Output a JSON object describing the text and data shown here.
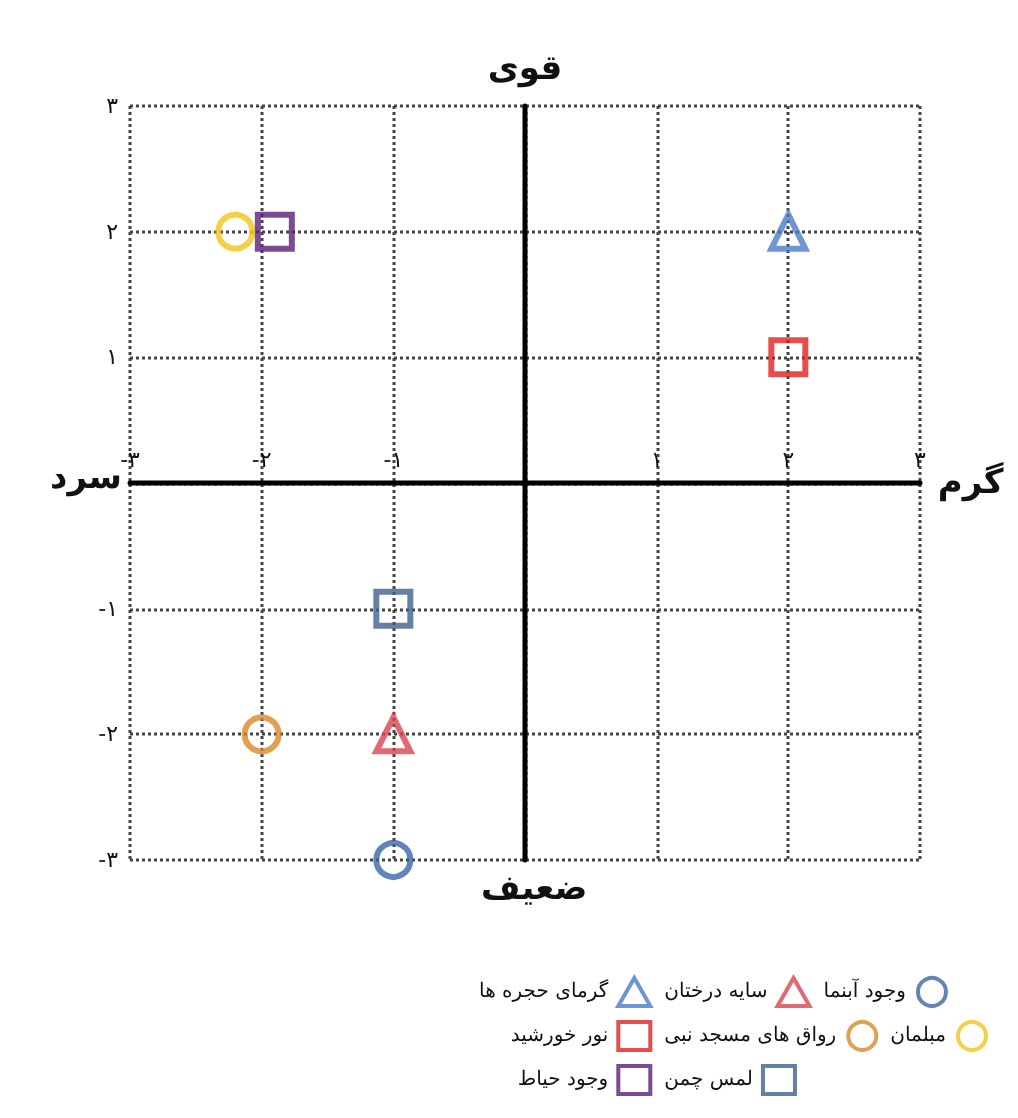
{
  "chart_data": {
    "type": "scatter",
    "xlabel": "گرم",
    "ylabel": "قوی",
    "annotations": [
      "سرد",
      "ضعیف"
    ],
    "xlim": [
      -3,
      3
    ],
    "ylim": [
      -3,
      3
    ],
    "xticks": [
      {
        "value": -3,
        "label": "-۳"
      },
      {
        "value": -2,
        "label": "-۲"
      },
      {
        "value": -1,
        "label": "-۱"
      },
      {
        "value": 0,
        "label": null
      },
      {
        "value": 1,
        "label": "۱"
      },
      {
        "value": 2,
        "label": "۲"
      },
      {
        "value": 3,
        "label": "۳"
      }
    ],
    "yticks": [
      {
        "value": -3,
        "label": "-۳"
      },
      {
        "value": -2,
        "label": "-۲"
      },
      {
        "value": -1,
        "label": "-۱"
      },
      {
        "value": 0,
        "label": null
      },
      {
        "value": 1,
        "label": "۱"
      },
      {
        "value": 2,
        "label": "۲"
      },
      {
        "value": 3,
        "label": "۳"
      }
    ],
    "grid": true,
    "legend": "bottom right",
    "series": [
      {
        "name": "سایه درختان",
        "color": "#d9434e",
        "marker": "triangle",
        "x": [
          -1
        ],
        "values": [
          -2
        ]
      },
      {
        "name": "گرمای حجره ها",
        "color": "#4a7cc7",
        "marker": "triangle",
        "x": [
          2
        ],
        "values": [
          2
        ]
      },
      {
        "name": "نور خورشید",
        "color": "#e02020",
        "marker": "square",
        "x": [
          2
        ],
        "values": [
          1
        ]
      },
      {
        "name": "وجود آبنما",
        "color": "#3a66a8",
        "marker": "circle",
        "x": [
          -1
        ],
        "values": [
          -3
        ]
      },
      {
        "name": "مبلمان",
        "color": "#f0c419",
        "marker": "circle",
        "x": [
          -2.2
        ],
        "values": [
          2
        ]
      },
      {
        "name": "رواق های مسجد نبی",
        "color": "#d98a2b",
        "marker": "circle",
        "x": [
          -2
        ],
        "values": [
          -2
        ]
      },
      {
        "name": "لمس چمن",
        "color": "#3e5f8e",
        "marker": "square",
        "x": [
          -1
        ],
        "values": [
          -1
        ]
      },
      {
        "name": "وجود حیاط",
        "color": "#5a1f7a",
        "marker": "square",
        "x": [
          -1.9
        ],
        "values": [
          2
        ]
      }
    ]
  }
}
